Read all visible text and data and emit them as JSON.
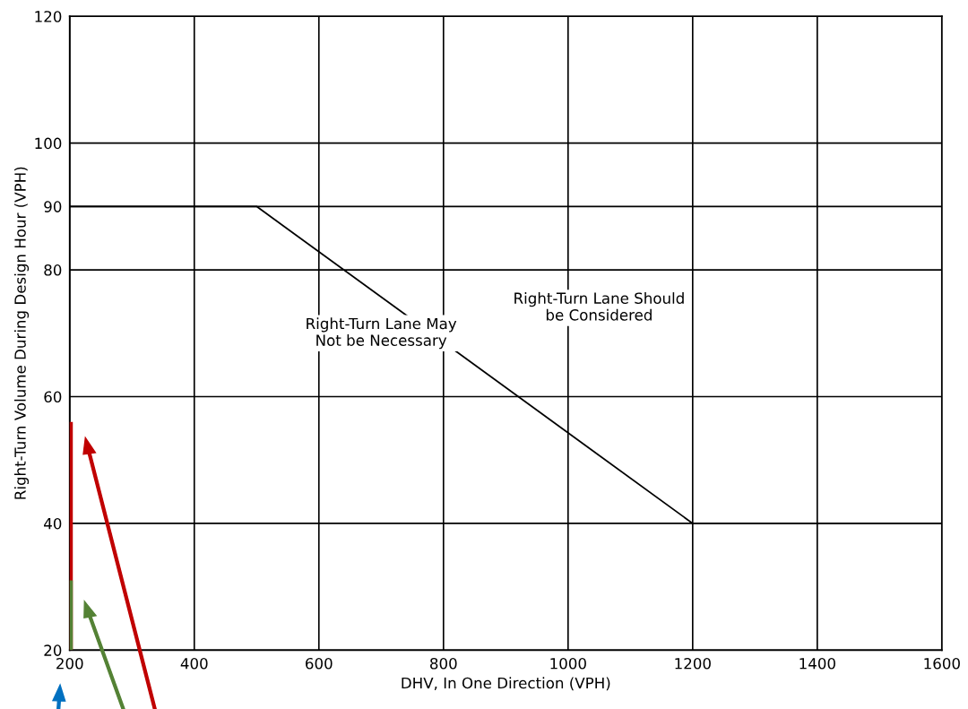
{
  "chart_data": {
    "type": "line",
    "xlabel": "DHV, In One Direction (VPH)",
    "ylabel": "Right-Turn Volume During Design Hour (VPH)",
    "series": [
      {
        "x": [
          200,
          500,
          1200,
          1600
        ],
        "values": [
          90,
          90,
          40,
          40
        ],
        "color": "#000000"
      },
      {
        "x": [
          200,
          200
        ],
        "values": [
          20,
          56
        ],
        "color": "#c00000"
      },
      {
        "x": [
          200,
          200
        ],
        "values": [
          20,
          31
        ],
        "color": "#548235"
      }
    ],
    "xlim": [
      200,
      1600
    ],
    "xticks": [
      200,
      400,
      600,
      800,
      1000,
      1200,
      1400,
      1600
    ],
    "ylim": [
      20,
      120
    ],
    "yticks": [
      20,
      40,
      60,
      80,
      90,
      100,
      120
    ],
    "grid": true,
    "marker": "none",
    "line_style": "solid",
    "annotations": [
      "Right-Turn Lane May\nNot be Necessary",
      "Right-Turn Lane Should\nbe Considered"
    ]
  }
}
